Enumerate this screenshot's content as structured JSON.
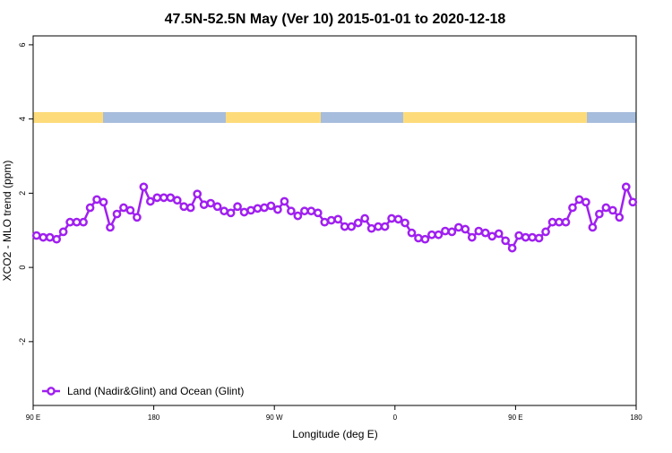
{
  "chart_data": {
    "type": "line",
    "title": "47.5N-52.5N May (Ver 10)   2015-01-01 to 2020-12-18",
    "x_label": "Longitude (deg E)",
    "y_label": "XCO2 - MLO trend (ppm)",
    "x": [
      92.5,
      97.5,
      102.5,
      107.5,
      112.5,
      117.5,
      122.5,
      127.5,
      132.5,
      137.5,
      142.5,
      147.5,
      152.5,
      157.5,
      162.5,
      167.5,
      172.5,
      177.5,
      182.5,
      187.5,
      192.5,
      197.5,
      202.5,
      207.5,
      212.5,
      217.5,
      222.5,
      227.5,
      232.5,
      237.5,
      242.5,
      247.5,
      252.5,
      257.5,
      262.5,
      267.5,
      272.5,
      277.5,
      282.5,
      287.5,
      292.5,
      297.5,
      302.5,
      307.5,
      312.5,
      317.5,
      322.5,
      327.5,
      332.5,
      337.5,
      342.5,
      347.5,
      352.5,
      357.5,
      362.5,
      367.5,
      372.5,
      377.5,
      382.5,
      387.5,
      392.5,
      397.5,
      402.5,
      407.5,
      412.5,
      417.5,
      422.5,
      427.5,
      432.5,
      437.5,
      442.5,
      447.5,
      452.5,
      457.5,
      462.5,
      467.5,
      472.5,
      477.5,
      482.5,
      487.5,
      492.5,
      497.5,
      502.5,
      507.5,
      512.5,
      517.5,
      522.5,
      527.5,
      532.5,
      537.5
    ],
    "series": [
      {
        "name": "Land (Nadir&Glint) and Ocean (Glint)",
        "color": "#a020f0",
        "values": [
          0.86,
          0.81,
          0.81,
          0.76,
          0.96,
          1.22,
          1.22,
          1.22,
          1.61,
          1.83,
          1.76,
          1.08,
          1.44,
          1.61,
          1.54,
          1.35,
          2.17,
          1.78,
          1.88,
          1.88,
          1.88,
          1.81,
          1.64,
          1.61,
          1.98,
          1.69,
          1.73,
          1.64,
          1.52,
          1.47,
          1.64,
          1.49,
          1.54,
          1.59,
          1.61,
          1.66,
          1.56,
          1.78,
          1.52,
          1.39,
          1.52,
          1.52,
          1.47,
          1.22,
          1.27,
          1.3,
          1.1,
          1.1,
          1.2,
          1.32,
          1.05,
          1.1,
          1.1,
          1.32,
          1.3,
          1.2,
          0.93,
          0.79,
          0.76,
          0.88,
          0.88,
          0.98,
          0.96,
          1.08,
          1.03,
          0.81,
          0.98,
          0.93,
          0.84,
          0.91,
          0.72,
          0.52,
          0.86,
          0.81,
          0.81,
          0.79,
          0.96,
          1.22,
          1.22,
          1.22,
          1.61,
          1.83,
          1.76,
          1.08,
          1.44,
          1.61,
          1.54,
          1.35,
          2.17,
          1.76
        ]
      }
    ],
    "xlim": [
      90,
      540
    ],
    "xticks": [
      {
        "value": 90,
        "label": "90 E"
      },
      {
        "value": 180,
        "label": "180"
      },
      {
        "value": 270,
        "label": "90 W"
      },
      {
        "value": 360,
        "label": "0"
      },
      {
        "value": 450,
        "label": "90 E"
      },
      {
        "value": 540,
        "label": "180"
      }
    ],
    "ylim": [
      -3.72,
      6.24
    ],
    "yticks": [
      -2,
      0,
      2,
      4,
      6
    ],
    "legend": "bottom-left"
  }
}
